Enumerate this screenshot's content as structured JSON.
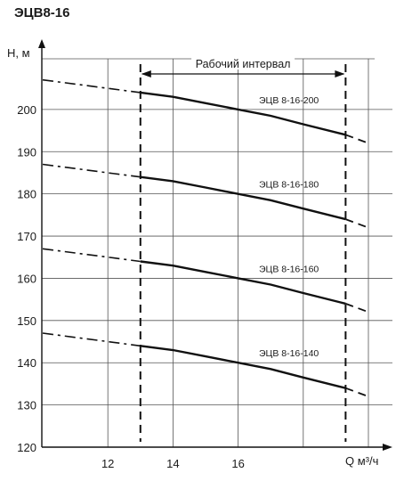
{
  "chart_data": {
    "type": "line",
    "title": "ЭЦВ8-16",
    "ylabel": "H, м",
    "xlabel": "Q м³/ч",
    "xlim": [
      10,
      20
    ],
    "ylim": [
      120,
      212
    ],
    "x_ticks": [
      12,
      14,
      16
    ],
    "y_ticks": [
      120,
      130,
      140,
      150,
      160,
      170,
      180,
      190,
      200
    ],
    "grid": true,
    "working_interval": {
      "label": "Рабочий интервал",
      "x_start": 13,
      "x_end": 19.3
    },
    "series": [
      {
        "name": "ЭЦВ 8-16-200",
        "x": [
          10,
          11,
          12,
          13,
          14,
          15,
          16,
          17,
          18,
          19.3,
          20
        ],
        "y": [
          207,
          206,
          205,
          204,
          203,
          201.5,
          200,
          198.5,
          196.5,
          194,
          192
        ]
      },
      {
        "name": "ЭЦВ 8-16-180",
        "x": [
          10,
          11,
          12,
          13,
          14,
          15,
          16,
          17,
          18,
          19.3,
          20
        ],
        "y": [
          187,
          186,
          185,
          184,
          183,
          181.5,
          180,
          178.5,
          176.5,
          174,
          172
        ]
      },
      {
        "name": "ЭЦВ 8-16-160",
        "x": [
          10,
          11,
          12,
          13,
          14,
          15,
          16,
          17,
          18,
          19.3,
          20
        ],
        "y": [
          167,
          166,
          165,
          164,
          163,
          161.5,
          160,
          158.5,
          156.5,
          154,
          152
        ]
      },
      {
        "name": "ЭЦВ 8-16-140",
        "x": [
          10,
          11,
          12,
          13,
          14,
          15,
          16,
          17,
          18,
          19.3,
          20
        ],
        "y": [
          147,
          146,
          145,
          144,
          143,
          141.5,
          140,
          138.5,
          136.5,
          134,
          132
        ]
      }
    ]
  }
}
